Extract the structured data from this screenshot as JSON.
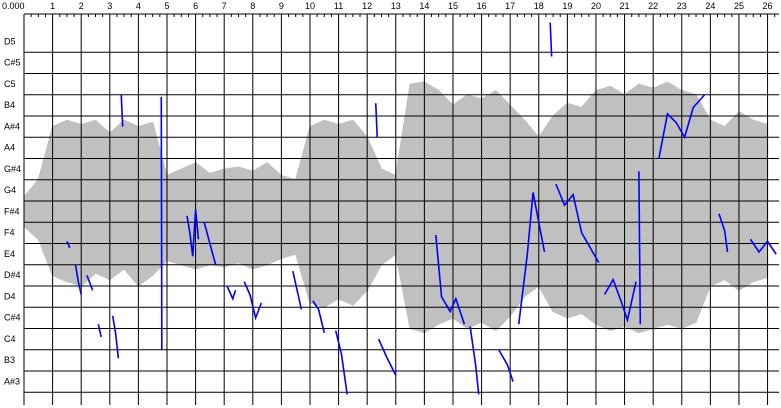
{
  "chart_data": {
    "type": "line",
    "xlim": [
      0,
      26.4
    ],
    "ylim": [
      -0.6,
      17.8
    ],
    "grid": true,
    "xticks": [
      {
        "value": 0,
        "label": "0.000"
      },
      1,
      2,
      3,
      4,
      5,
      6,
      7,
      8,
      9,
      10,
      11,
      12,
      13,
      14,
      15,
      16,
      17,
      18,
      19,
      20,
      21,
      22,
      23,
      24,
      25,
      26
    ],
    "yticks": [
      {
        "value": 16,
        "label": "D5"
      },
      {
        "value": 15,
        "label": "C#5"
      },
      {
        "value": 14,
        "label": "C5"
      },
      {
        "value": 13,
        "label": "B4"
      },
      {
        "value": 12,
        "label": "A#4"
      },
      {
        "value": 11,
        "label": "A4"
      },
      {
        "value": 10,
        "label": "G#4"
      },
      {
        "value": 9,
        "label": "G4"
      },
      {
        "value": 8,
        "label": "F#4"
      },
      {
        "value": 7,
        "label": "F4"
      },
      {
        "value": 6,
        "label": "E4"
      },
      {
        "value": 5,
        "label": "D#4"
      },
      {
        "value": 4,
        "label": "D4"
      },
      {
        "value": 3,
        "label": "C#4"
      },
      {
        "value": 2,
        "label": "C4"
      },
      {
        "value": 1,
        "label": "B3"
      },
      {
        "value": 0,
        "label": "A#3"
      }
    ],
    "waveform": {
      "color": "#c0c0c0",
      "x": [
        0,
        0.5,
        1,
        1.5,
        2,
        2.5,
        3,
        3.5,
        4,
        4.5,
        5,
        5.5,
        6,
        6.5,
        7,
        7.5,
        8,
        8.5,
        9,
        9.5,
        10,
        10.5,
        11,
        11.5,
        12,
        12.5,
        13,
        13.5,
        14,
        14.5,
        15,
        15.5,
        16,
        16.5,
        17,
        17.5,
        18,
        18.5,
        19,
        19.5,
        20,
        20.5,
        21,
        21.5,
        22,
        22.5,
        23,
        23.5,
        24,
        24.5,
        25,
        25.5,
        26
      ],
      "upper": [
        9.2,
        10,
        12.5,
        12.8,
        12.6,
        12.8,
        12.2,
        12.8,
        12.5,
        12.7,
        10.2,
        10.5,
        10.8,
        10.3,
        10.5,
        10.6,
        10.4,
        10.8,
        10.2,
        10,
        12.5,
        12.8,
        12.6,
        12.8,
        12,
        10.5,
        10.2,
        14.5,
        14.6,
        14.2,
        13.5,
        14,
        13.8,
        14.2,
        13.5,
        12.8,
        12,
        13,
        13.6,
        13.4,
        14.2,
        14.4,
        14,
        14.5,
        14.3,
        14.6,
        14.2,
        14,
        12.8,
        12.5,
        13.2,
        12.8,
        12.6
      ],
      "lower": [
        7.8,
        7.2,
        5.5,
        5.2,
        5,
        5.6,
        5.3,
        5.8,
        5,
        5.5,
        6.2,
        6,
        5.8,
        6,
        5.9,
        6.1,
        5.8,
        6,
        6.3,
        6.5,
        4.2,
        4,
        4.4,
        4.1,
        4.8,
        6,
        6.5,
        3,
        2.8,
        3.2,
        3.5,
        3,
        3.3,
        2.9,
        3.6,
        4.5,
        5,
        3.8,
        3.5,
        3.7,
        3.2,
        2.9,
        3.1,
        2.8,
        3,
        3.2,
        3,
        3.3,
        5,
        5.3,
        4.8,
        5.2,
        5.4
      ]
    },
    "series": [
      {
        "color": "#0000ff",
        "x": [
          1.5,
          1.6,
          null,
          1.8,
          1.9,
          2.0,
          null,
          2.2,
          2.4,
          null,
          2.6,
          2.7,
          null,
          3.1,
          3.2,
          3.3,
          null,
          3.4,
          3.45,
          null,
          4.8,
          4.82,
          null,
          5.7,
          5.8,
          5.9,
          6.0,
          6.1,
          null,
          6.3,
          6.5,
          6.7,
          null,
          7.1,
          7.3,
          7.4,
          null,
          7.7,
          7.9,
          8.1,
          8.3,
          null,
          9.4,
          9.6,
          9.7,
          null,
          10.1,
          10.3,
          10.5,
          null,
          10.9,
          11.1,
          11.3,
          null,
          12.3,
          12.35,
          null,
          12.4,
          12.7,
          13.0,
          null,
          14.4,
          14.6,
          14.9,
          15.1,
          15.4,
          null,
          15.6,
          15.8,
          15.9,
          null,
          16.6,
          16.9,
          17.1,
          null,
          17.3,
          17.6,
          17.8,
          18.0,
          18.2,
          null,
          18.4,
          18.45,
          null,
          18.6,
          18.9,
          19.2,
          19.5,
          19.8,
          20.1,
          null,
          20.3,
          20.6,
          20.9,
          21.1,
          21.4,
          null,
          21.5,
          21.55,
          null,
          22.2,
          22.5,
          22.8,
          23.1,
          23.4,
          23.8,
          null,
          24.3,
          24.5,
          24.6,
          null,
          25.4,
          25.7,
          26.0,
          26.3
        ],
        "values": [
          7.1,
          6.8,
          null,
          6,
          5.2,
          4.6,
          null,
          5.5,
          4.8,
          null,
          3.2,
          2.6,
          null,
          3.6,
          2.8,
          1.6,
          null,
          14,
          12.5,
          null,
          13.9,
          2,
          null,
          8.3,
          7.5,
          6.4,
          8.6,
          7.2,
          null,
          8.0,
          7.0,
          6.0,
          null,
          5.0,
          4.4,
          4.8,
          null,
          5.2,
          4.6,
          3.5,
          4.2,
          null,
          5.7,
          4.5,
          3.9,
          null,
          4.3,
          3.9,
          2.8,
          null,
          2.9,
          1.8,
          -0.1,
          null,
          13.6,
          12,
          null,
          2.5,
          1.6,
          0.8,
          null,
          7.4,
          4.5,
          3.8,
          4.4,
          3.2,
          null,
          3.1,
          1.2,
          -0.1,
          null,
          2,
          1.3,
          0.5,
          null,
          3.2,
          6.5,
          9.4,
          8,
          6.6,
          null,
          17.4,
          15.8,
          null,
          9.8,
          8.8,
          9.3,
          7.5,
          6.8,
          6.1,
          null,
          4.6,
          5.3,
          4.2,
          3.4,
          5.2,
          null,
          10.4,
          3.2,
          null,
          11,
          13.1,
          12.7,
          12.0,
          13.4,
          14.0,
          null,
          8.4,
          7.6,
          6.6,
          null,
          7.2,
          6.6,
          7.1,
          6.5
        ]
      }
    ]
  }
}
